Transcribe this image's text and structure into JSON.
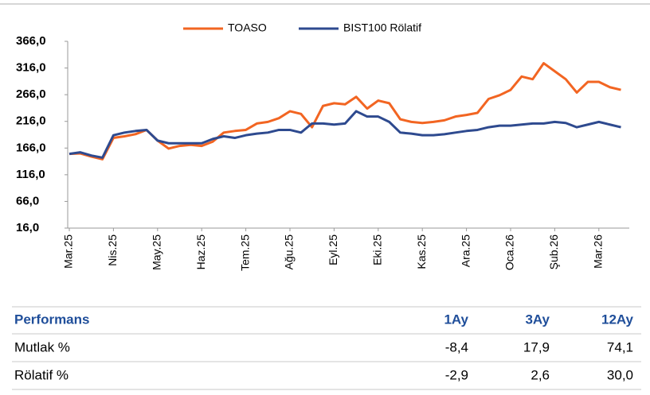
{
  "chart_data": {
    "type": "line",
    "categories": [
      "Mar.25",
      null,
      null,
      null,
      "Nis.25",
      null,
      null,
      null,
      "May.25",
      null,
      null,
      null,
      "Haz.25",
      null,
      null,
      null,
      "Tem.25",
      null,
      null,
      null,
      "Ağu.25",
      null,
      null,
      null,
      "Eyl.25",
      null,
      null,
      null,
      "Eki.25",
      null,
      null,
      null,
      "Kas.25",
      null,
      null,
      null,
      "Ara.25",
      null,
      null,
      null,
      "Oca.26",
      null,
      null,
      null,
      "Şub.26",
      null,
      null,
      null,
      "Mar.26",
      null,
      null
    ],
    "series": [
      {
        "name": "TOASO",
        "color": "#f26522",
        "values": [
          155,
          156,
          150,
          145,
          185,
          188,
          192,
          200,
          180,
          165,
          170,
          172,
          170,
          178,
          195,
          198,
          200,
          212,
          215,
          222,
          235,
          230,
          205,
          245,
          250,
          248,
          262,
          240,
          255,
          250,
          220,
          215,
          213,
          215,
          218,
          225,
          228,
          232,
          258,
          265,
          275,
          300,
          295,
          325,
          310,
          295,
          270,
          290,
          290,
          280,
          275
        ]
      },
      {
        "name": "BIST100 Rölatif",
        "color": "#2e4a8f",
        "values": [
          155,
          158,
          152,
          148,
          190,
          195,
          198,
          200,
          180,
          175,
          175,
          175,
          175,
          183,
          188,
          185,
          190,
          193,
          195,
          200,
          200,
          195,
          212,
          212,
          210,
          212,
          235,
          225,
          225,
          215,
          195,
          193,
          190,
          190,
          192,
          195,
          198,
          200,
          205,
          208,
          208,
          210,
          212,
          212,
          215,
          213,
          205,
          210,
          215,
          210,
          205
        ]
      }
    ],
    "ylim": [
      16,
      366
    ],
    "yticks": [
      {
        "value": 16,
        "label": "16,0"
      },
      {
        "value": 66,
        "label": "66,0"
      },
      {
        "value": 116,
        "label": "116,0"
      },
      {
        "value": 166,
        "label": "166,0"
      },
      {
        "value": 216,
        "label": "216,0"
      },
      {
        "value": 266,
        "label": "266,0"
      },
      {
        "value": 316,
        "label": "316,0"
      },
      {
        "value": 366,
        "label": "366,0"
      }
    ],
    "legend": "top"
  },
  "table": {
    "header": [
      "Performans",
      "1Ay",
      "3Ay",
      "12Ay"
    ],
    "rows": [
      [
        "Mutlak %",
        "-8,4",
        "17,9",
        "74,1"
      ],
      [
        "Rölatif %",
        "-2,9",
        "2,6",
        "30,0"
      ]
    ]
  }
}
